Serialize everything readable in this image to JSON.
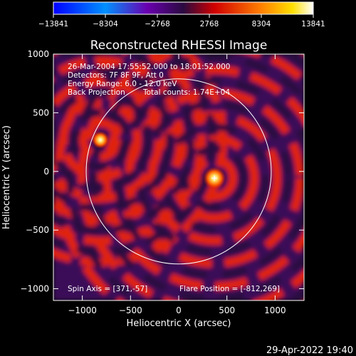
{
  "chart_data": {
    "type": "heatmap",
    "title": "Reconstructed RHESSI Image",
    "xlabel": "Heliocentric X (arcsec)",
    "ylabel": "Heliocentric Y (arcsec)",
    "xlim": [
      -1300,
      1300
    ],
    "ylim": [
      -1100,
      1000
    ],
    "xticks": [
      -1000,
      -500,
      0,
      500,
      1000
    ],
    "yticks": [
      -1000,
      -500,
      0,
      500,
      1000
    ],
    "xtick_labels": [
      "−1000",
      "−500",
      "0",
      "500",
      "1000"
    ],
    "ytick_labels": [
      "−1000",
      "−500",
      "0",
      "500",
      "1000"
    ],
    "colorbar": {
      "min": -13841,
      "max": 13841,
      "ticks": [
        -13841,
        -8304,
        -2768,
        2768,
        8304,
        13841
      ],
      "tick_labels": [
        "−13841",
        "−8304",
        "−2768",
        "2768",
        "8304",
        "13841"
      ],
      "colors": [
        "#0000ff",
        "#00d0ff",
        "#ff0000",
        "#ffe000",
        "#ffffff"
      ]
    },
    "annotations": [
      "26-Mar-2004 17:55:52.000 to 18:01:52.000",
      "Detectors: 7F 8F 9F, Att 0",
      "Energy Range: 6.0 - 12.0 keV",
      "Back Projection",
      "Total counts: 1.74E+04",
      "Spin Axis = [371,-57]",
      "Flare Position = [-812,269]"
    ],
    "sources": [
      {
        "x": -812,
        "y": 269,
        "strength": 0.78
      },
      {
        "x": 371,
        "y": -57,
        "strength": 1.0
      }
    ],
    "solar_limb": {
      "center_x": 0,
      "center_y": 0,
      "radius": 960
    },
    "colors": {
      "background": "#000000",
      "negative_dark": "#2a0a40",
      "ripple_positive": "#e02010",
      "limb": "#ffffff"
    }
  },
  "footer": {
    "timestamp": "29-Apr-2022 19:40"
  }
}
